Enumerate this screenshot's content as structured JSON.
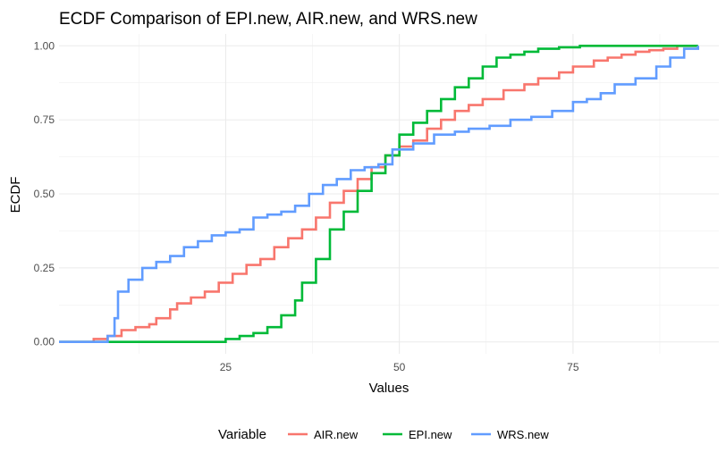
{
  "chart_data": {
    "type": "line",
    "step": true,
    "title": "ECDF Comparison of EPI.new, AIR.new, and WRS.new",
    "xlabel": "Values",
    "ylabel": "ECDF",
    "xlim": [
      1,
      96
    ],
    "ylim": [
      -0.04,
      1.04
    ],
    "x_ticks": [
      25,
      50,
      75
    ],
    "x_tick_labels": [
      "25",
      "50",
      "75"
    ],
    "y_ticks": [
      0,
      0.25,
      0.5,
      0.75,
      1
    ],
    "y_tick_labels": [
      "0.00",
      "0.25",
      "0.50",
      "0.75",
      "1.00"
    ],
    "grid": true,
    "legend": {
      "position": "bottom",
      "title": "Variable",
      "entries": [
        "AIR.new",
        "EPI.new",
        "WRS.new"
      ]
    },
    "series": [
      {
        "name": "AIR.new",
        "color": "#F8766D",
        "x": [
          1,
          5,
          6,
          8,
          10,
          12,
          14,
          15,
          17,
          18,
          20,
          22,
          24,
          26,
          28,
          30,
          32,
          34,
          36,
          38,
          40,
          42,
          44,
          46,
          48,
          50,
          52,
          54,
          56,
          58,
          60,
          62,
          65,
          68,
          70,
          73,
          75,
          78,
          80,
          82,
          84,
          86,
          88,
          90,
          93
        ],
        "y": [
          0,
          0,
          0.01,
          0.02,
          0.04,
          0.05,
          0.06,
          0.08,
          0.11,
          0.13,
          0.15,
          0.17,
          0.2,
          0.23,
          0.26,
          0.28,
          0.32,
          0.35,
          0.38,
          0.42,
          0.47,
          0.51,
          0.55,
          0.59,
          0.63,
          0.66,
          0.68,
          0.72,
          0.75,
          0.78,
          0.8,
          0.82,
          0.85,
          0.87,
          0.89,
          0.91,
          0.93,
          0.95,
          0.96,
          0.97,
          0.98,
          0.985,
          0.99,
          1.0,
          1.0
        ]
      },
      {
        "name": "EPI.new",
        "color": "#00BA38",
        "x": [
          1,
          23,
          25,
          27,
          29,
          31,
          33,
          35,
          36,
          38,
          40,
          42,
          44,
          46,
          48,
          50,
          52,
          54,
          56,
          58,
          60,
          62,
          64,
          66,
          68,
          70,
          73,
          76,
          93
        ],
        "y": [
          0,
          0,
          0.01,
          0.02,
          0.03,
          0.05,
          0.09,
          0.14,
          0.2,
          0.28,
          0.38,
          0.44,
          0.51,
          0.57,
          0.63,
          0.7,
          0.74,
          0.78,
          0.82,
          0.86,
          0.89,
          0.93,
          0.96,
          0.97,
          0.98,
          0.99,
          0.995,
          1.0,
          1.0
        ]
      },
      {
        "name": "WRS.new",
        "color": "#619CFF",
        "x": [
          1,
          6,
          8,
          9,
          9.5,
          11,
          13,
          15,
          17,
          19,
          21,
          23,
          25,
          27,
          29,
          31,
          33,
          35,
          37,
          39,
          41,
          43,
          45,
          47,
          49,
          52,
          55,
          58,
          60,
          63,
          66,
          69,
          72,
          75,
          77,
          79,
          81,
          84,
          87,
          89,
          91,
          93
        ],
        "y": [
          0,
          0,
          0.02,
          0.08,
          0.17,
          0.21,
          0.25,
          0.27,
          0.29,
          0.32,
          0.34,
          0.36,
          0.37,
          0.38,
          0.42,
          0.43,
          0.44,
          0.46,
          0.5,
          0.53,
          0.55,
          0.58,
          0.59,
          0.6,
          0.65,
          0.67,
          0.7,
          0.71,
          0.72,
          0.73,
          0.75,
          0.76,
          0.78,
          0.81,
          0.82,
          0.84,
          0.87,
          0.89,
          0.93,
          0.96,
          0.99,
          1.0
        ]
      }
    ]
  }
}
